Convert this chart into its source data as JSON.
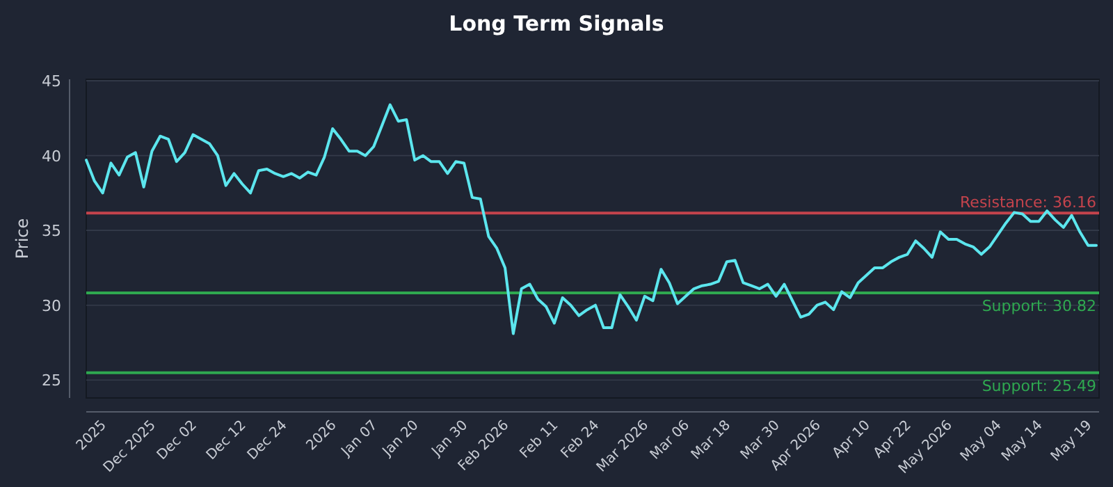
{
  "chart_data": {
    "type": "line",
    "title": "Long Term Signals",
    "ylabel": "Price",
    "categories": [
      null,
      null,
      "2025",
      null,
      null,
      null,
      null,
      null,
      "Dec 2025",
      null,
      null,
      null,
      null,
      "Dec 02",
      null,
      null,
      null,
      null,
      null,
      "Dec 12",
      null,
      null,
      null,
      null,
      "Dec 24",
      null,
      null,
      null,
      null,
      null,
      "2026",
      null,
      null,
      null,
      null,
      "Jan 07",
      null,
      null,
      null,
      null,
      "Jan 20",
      null,
      null,
      null,
      null,
      null,
      "Jan 30",
      null,
      null,
      null,
      null,
      "Feb 2026",
      null,
      null,
      null,
      null,
      null,
      "Feb 11",
      null,
      null,
      null,
      null,
      "Feb 24",
      null,
      null,
      null,
      null,
      null,
      "Mar 2026",
      null,
      null,
      null,
      null,
      "Mar 06",
      null,
      null,
      null,
      null,
      "Mar 18",
      null,
      null,
      null,
      null,
      null,
      "Mar 30",
      null,
      null,
      null,
      null,
      "Apr 2026",
      null,
      null,
      null,
      null,
      null,
      "Apr 10",
      null,
      null,
      null,
      null,
      "Apr 22",
      null,
      null,
      null,
      null,
      "May 2026",
      null,
      null,
      null,
      null,
      null,
      "May 04",
      null,
      null,
      null,
      null,
      "May 14",
      null,
      null,
      null,
      null,
      null,
      "May 19",
      null
    ],
    "series": [
      {
        "color": "#5ce6ee",
        "values": [
          39.7,
          38.3,
          37.5,
          39.5,
          38.7,
          39.9,
          40.2,
          37.9,
          40.3,
          41.3,
          41.1,
          39.6,
          40.2,
          41.4,
          41.1,
          40.8,
          40.0,
          38.0,
          38.8,
          38.1,
          37.5,
          39.0,
          39.1,
          38.8,
          38.6,
          38.8,
          38.5,
          38.9,
          38.7,
          39.9,
          41.8,
          41.1,
          40.3,
          40.3,
          40.0,
          40.6,
          42.0,
          43.4,
          42.3,
          42.4,
          39.7,
          40.0,
          39.6,
          39.6,
          38.8,
          39.6,
          39.5,
          37.2,
          37.1,
          34.6,
          33.8,
          32.5,
          28.1,
          31.1,
          31.4,
          30.4,
          29.9,
          28.8,
          30.5,
          30.0,
          29.3,
          29.7,
          30.0,
          28.5,
          28.5,
          30.7,
          29.9,
          29.0,
          30.6,
          30.3,
          32.4,
          31.5,
          30.1,
          30.6,
          31.1,
          31.3,
          31.4,
          31.6,
          32.9,
          33.0,
          31.5,
          31.3,
          31.1,
          31.4,
          30.6,
          31.4,
          30.3,
          29.2,
          29.4,
          30.0,
          30.2,
          29.7,
          30.9,
          30.5,
          31.5,
          32.0,
          32.5,
          32.5,
          32.9,
          33.2,
          33.4,
          34.3,
          33.8,
          33.2,
          34.9,
          34.4,
          34.4,
          34.1,
          33.9,
          33.4,
          33.9,
          34.7,
          35.5,
          36.2,
          36.1,
          35.6,
          35.6,
          36.3,
          35.7,
          35.2,
          36.0,
          34.9,
          34.0,
          34.0
        ]
      }
    ],
    "ylim": [
      23.8,
      45.1
    ],
    "yticks": [
      25,
      30,
      35,
      40,
      45
    ],
    "grid": "y",
    "marker": "none",
    "line_style": "solid",
    "ref_lines": [
      {
        "axis": "y",
        "value": 36.16,
        "label": "Resistance: 36.16",
        "color": "#c4434c"
      },
      {
        "axis": "y",
        "value": 30.82,
        "label": "Support: 30.82",
        "color": "#2fa850"
      },
      {
        "axis": "y",
        "value": 25.49,
        "label": "Support: 25.49",
        "color": "#2fa850"
      }
    ]
  }
}
